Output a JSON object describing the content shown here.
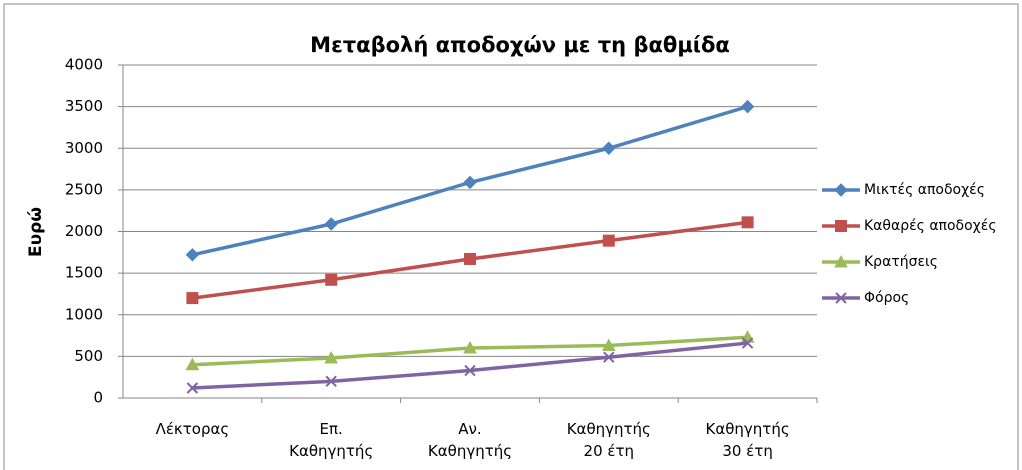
{
  "chart_data": {
    "type": "line",
    "title": "Μεταβολή αποδοχών με τη βαθμίδα",
    "y_label": "Ευρώ",
    "categories": [
      "Λέκτορας",
      "Επ.\nΚαθηγητής",
      "Αν.\nΚαθηγητής",
      "Καθηγητής\n20 έτη",
      "Καθηγητής\n30 έτη"
    ],
    "series": [
      {
        "name": "Μικτές αποδοχές",
        "color": "#4f81bd",
        "marker": "diamond",
        "values": [
          1720,
          2090,
          2590,
          3000,
          3500
        ]
      },
      {
        "name": "Καθαρές αποδοχές",
        "color": "#c0504d",
        "marker": "square",
        "values": [
          1200,
          1420,
          1670,
          1890,
          2110
        ]
      },
      {
        "name": "Κρατήσεις",
        "color": "#9bbb59",
        "marker": "triangle",
        "values": [
          400,
          480,
          600,
          630,
          730
        ]
      },
      {
        "name": "Φόρος",
        "color": "#8064a2",
        "marker": "x",
        "values": [
          120,
          200,
          330,
          490,
          660
        ]
      }
    ],
    "ylim": [
      0,
      4000
    ],
    "yticks": [
      0,
      500,
      1000,
      1500,
      2000,
      2500,
      3000,
      3500,
      4000
    ],
    "grid": true,
    "legend": "right"
  }
}
